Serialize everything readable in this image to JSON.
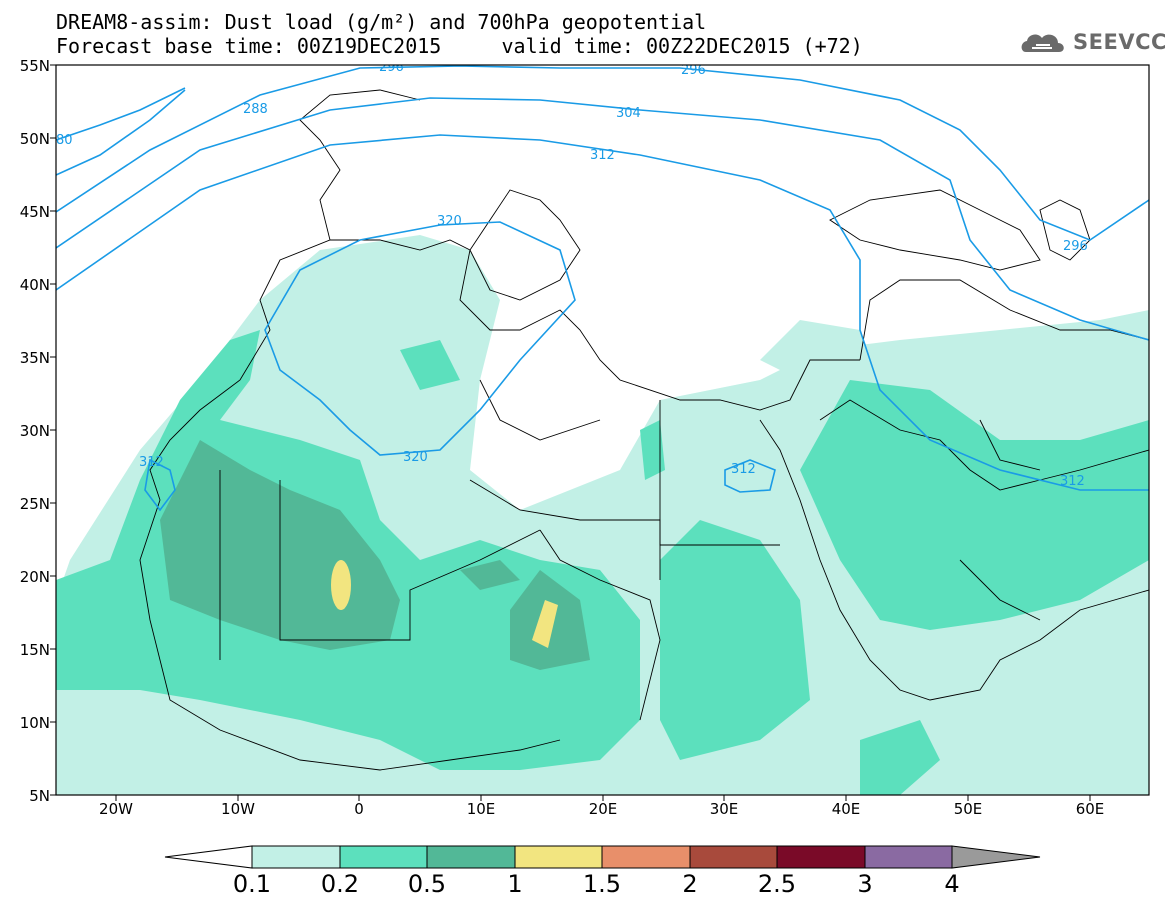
{
  "title_line1": "DREAM8-assim: Dust load (g/m²) and 700hPa geopotential",
  "title_line2": "Forecast base time: 00Z19DEC2015     valid time: 00Z22DEC2015 (+72)",
  "logo_text": "SEEVCCC",
  "lat_labels": [
    "55N",
    "50N",
    "45N",
    "40N",
    "35N",
    "30N",
    "25N",
    "20N",
    "15N",
    "10N",
    "5N"
  ],
  "lon_labels": [
    "20W",
    "10W",
    "0",
    "10E",
    "20E",
    "30E",
    "40E",
    "50E",
    "60E"
  ],
  "contour_labels": [
    "288",
    "296",
    "296",
    "304",
    "312",
    "320",
    "320",
    "312",
    "312",
    "312",
    "80",
    "296"
  ],
  "colorbar": {
    "tick_labels": [
      "0.1",
      "0.2",
      "0.5",
      "1",
      "1.5",
      "2",
      "2.5",
      "3",
      "4"
    ],
    "colors": [
      "#c2f0e6",
      "#5ce0bd",
      "#52b897",
      "#f2e580",
      "#e88f6a",
      "#a84a3c",
      "#7a0a28",
      "#8a6aa2"
    ],
    "under_color": "#ffffff",
    "over_color": "#9a9a9a"
  },
  "contour_color": "#1a9be6"
}
